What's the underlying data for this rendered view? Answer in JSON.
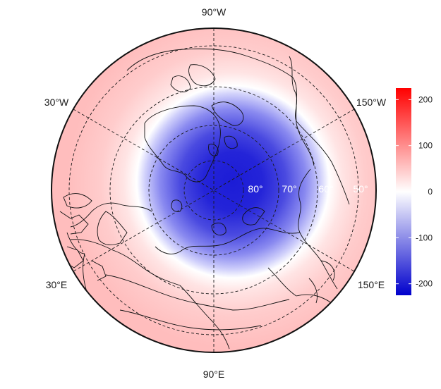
{
  "map": {
    "projection": "north polar stereographic",
    "lon_labels": {
      "top": "90°W",
      "upper_left": "30°W",
      "upper_right": "150°W",
      "lower_left": "30°E",
      "lower_right": "150°E",
      "bottom": "90°E"
    },
    "lat_labels": [
      "80°",
      "70°",
      "60°",
      "50°"
    ],
    "field": {
      "pole_value": -210,
      "edge_value": 60,
      "zero_contour_lat": 55
    },
    "colors": {
      "low": "#0000cc",
      "mid": "#ffffff",
      "high": "#ff0000"
    }
  },
  "colorbar": {
    "range": [
      -225,
      225
    ],
    "ticks": [
      "200",
      "100",
      "0",
      "-100",
      "-200"
    ],
    "tick_values": [
      200,
      100,
      0,
      -100,
      -200
    ]
  }
}
